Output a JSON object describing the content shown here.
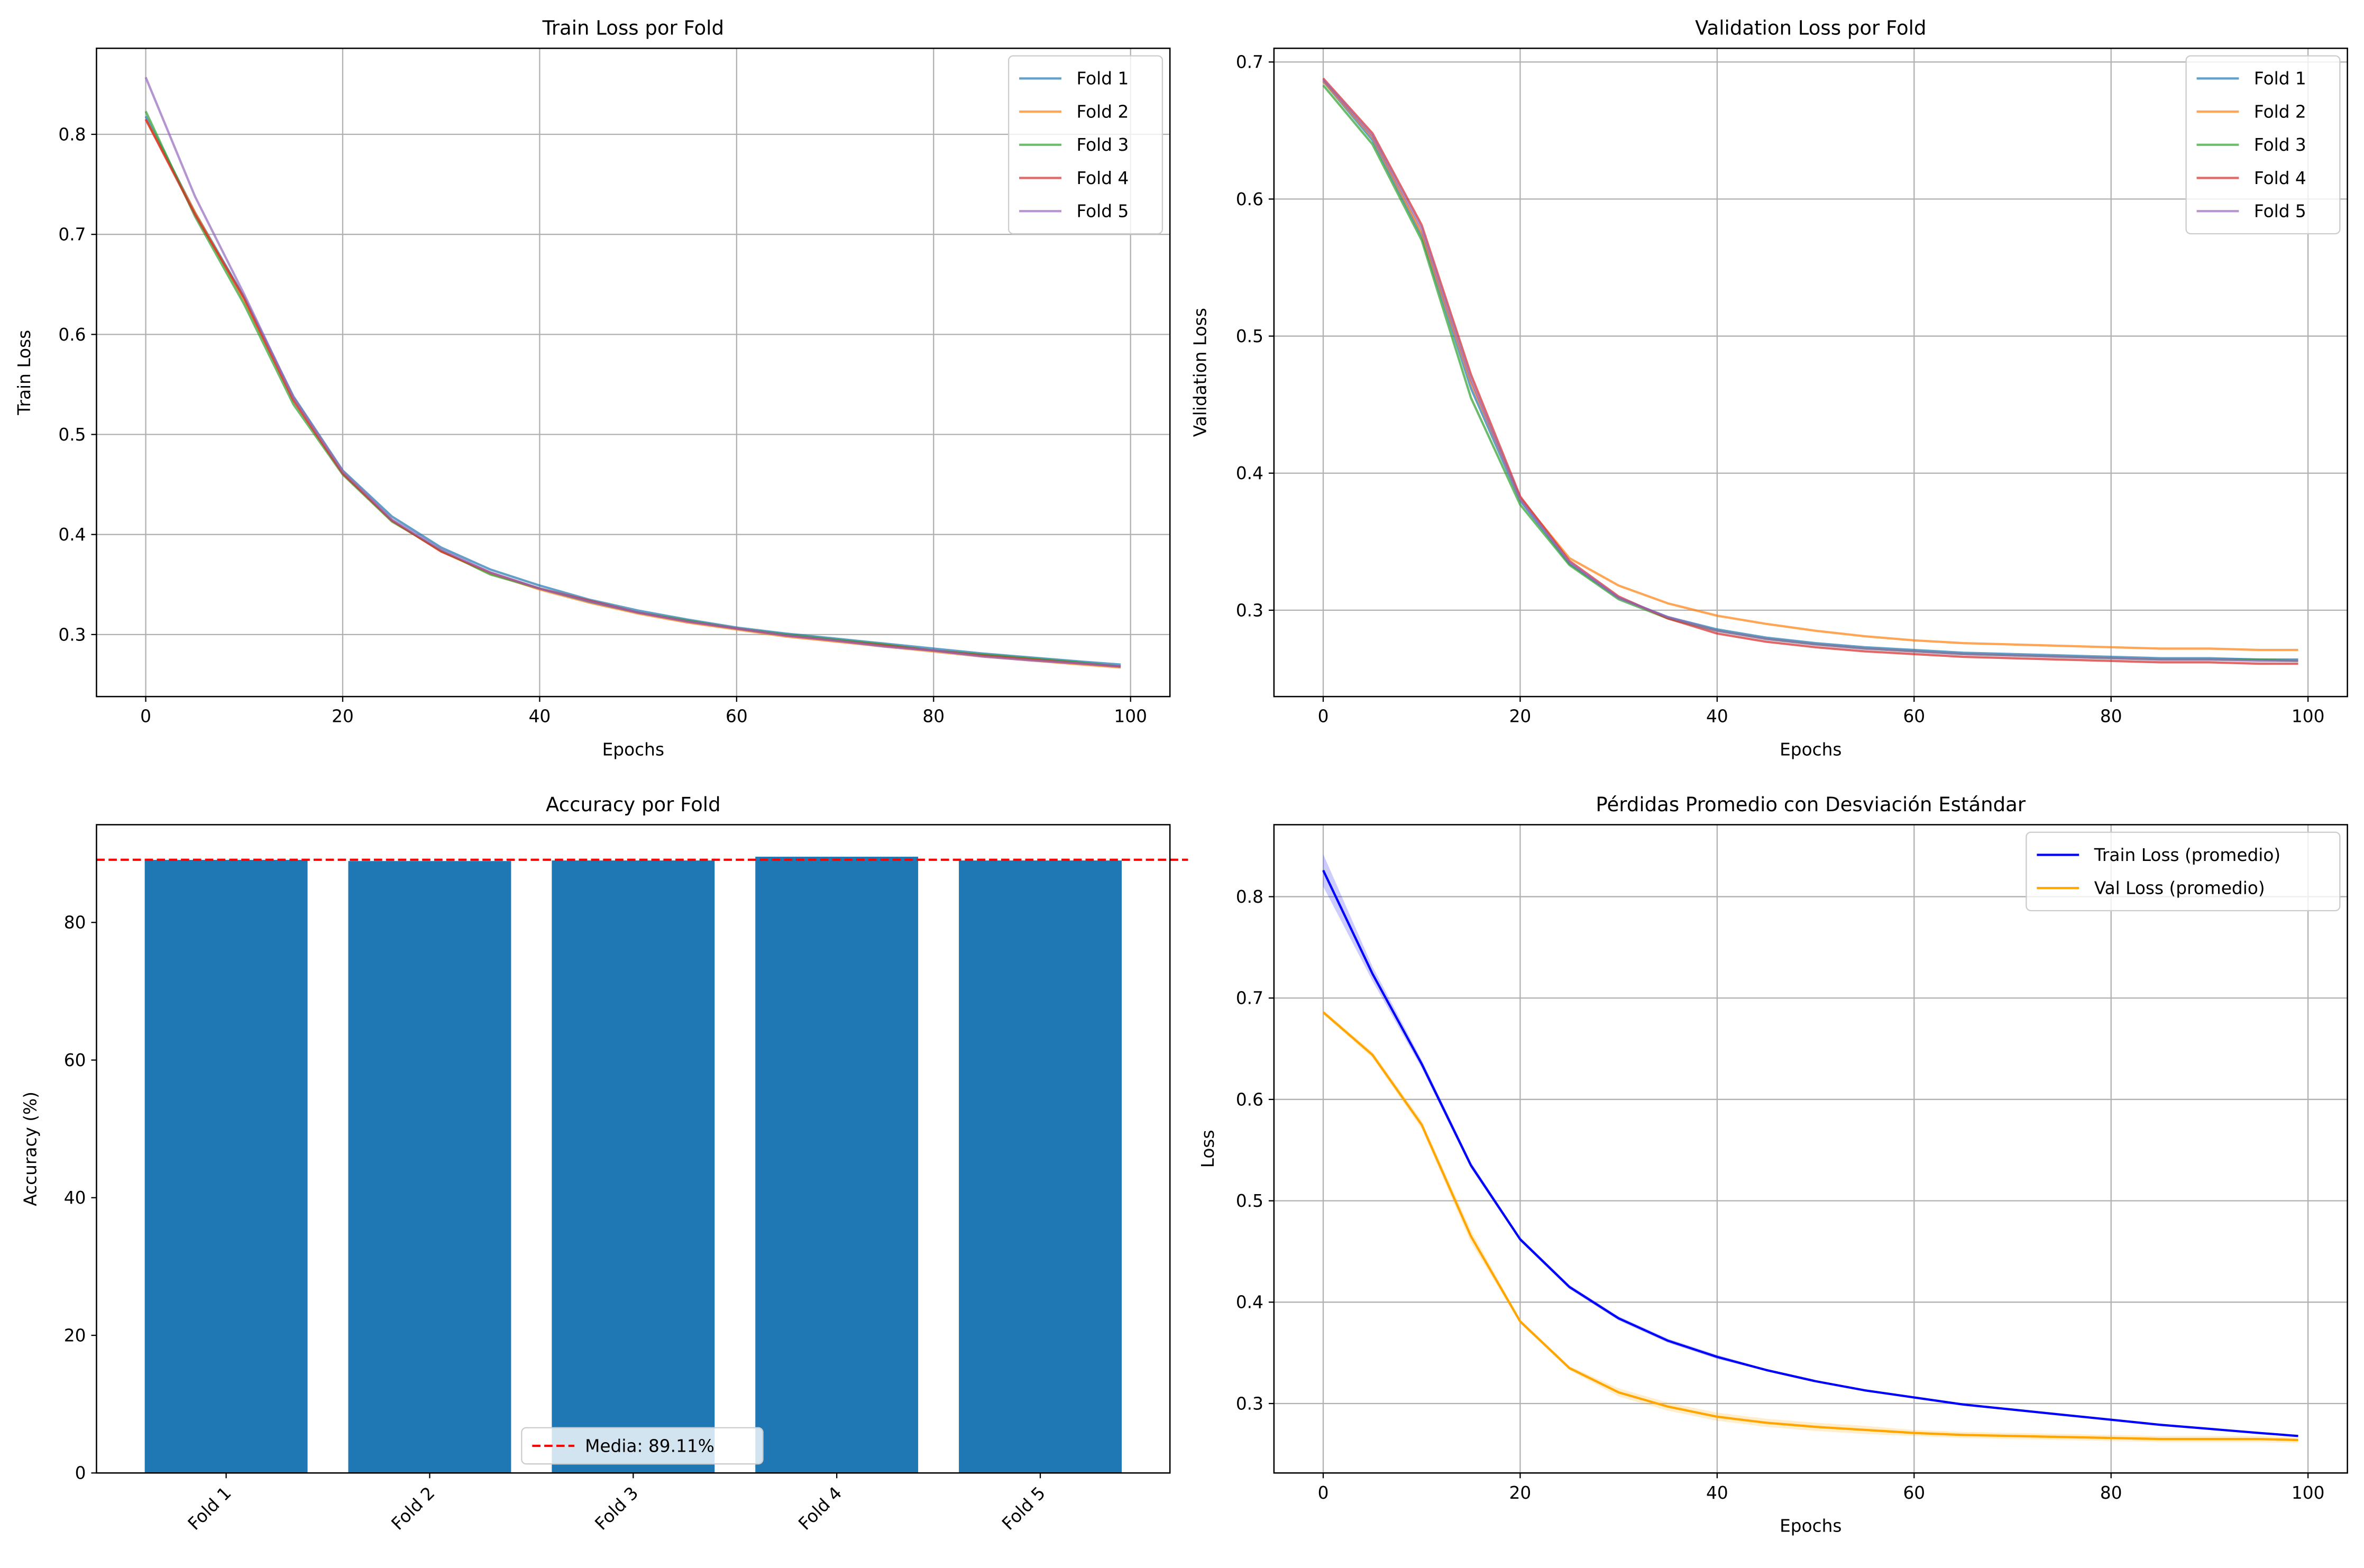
{
  "chart_data": [
    {
      "type": "line",
      "title": "Train Loss por Fold",
      "xlabel": "Epochs",
      "ylabel": "Train Loss",
      "xlim": [
        -5,
        104
      ],
      "ylim": [
        0.238,
        0.886
      ],
      "xticks": [
        0,
        20,
        40,
        60,
        80,
        100
      ],
      "yticks": [
        0.3,
        0.4,
        0.5,
        0.6,
        0.7,
        0.8
      ],
      "grid": true,
      "legend_position": "top-right",
      "x": [
        0,
        5,
        10,
        15,
        20,
        25,
        30,
        35,
        40,
        45,
        50,
        55,
        60,
        65,
        70,
        75,
        80,
        85,
        90,
        95,
        99
      ],
      "series": [
        {
          "name": "Fold 1",
          "color": "#1f77b4",
          "values": [
            0.818,
            0.722,
            0.637,
            0.538,
            0.464,
            0.418,
            0.387,
            0.365,
            0.349,
            0.335,
            0.324,
            0.315,
            0.307,
            0.301,
            0.296,
            0.291,
            0.286,
            0.281,
            0.277,
            0.273,
            0.27
          ]
        },
        {
          "name": "Fold 2",
          "color": "#ff7f0e",
          "values": [
            0.815,
            0.722,
            0.634,
            0.535,
            0.462,
            0.414,
            0.383,
            0.361,
            0.345,
            0.332,
            0.321,
            0.312,
            0.305,
            0.298,
            0.293,
            0.288,
            0.283,
            0.278,
            0.274,
            0.27,
            0.267
          ]
        },
        {
          "name": "Fold 3",
          "color": "#2ca02c",
          "values": [
            0.823,
            0.718,
            0.63,
            0.53,
            0.46,
            0.413,
            0.384,
            0.36,
            0.346,
            0.333,
            0.322,
            0.314,
            0.306,
            0.3,
            0.295,
            0.29,
            0.284,
            0.28,
            0.276,
            0.272,
            0.268
          ]
        },
        {
          "name": "Fold 4",
          "color": "#d62728",
          "values": [
            0.815,
            0.72,
            0.636,
            0.534,
            0.461,
            0.414,
            0.383,
            0.362,
            0.346,
            0.334,
            0.322,
            0.313,
            0.306,
            0.299,
            0.294,
            0.289,
            0.284,
            0.279,
            0.275,
            0.271,
            0.268
          ]
        },
        {
          "name": "Fold 5",
          "color": "#9467bd",
          "values": [
            0.857,
            0.738,
            0.64,
            0.537,
            0.463,
            0.415,
            0.385,
            0.362,
            0.346,
            0.333,
            0.322,
            0.313,
            0.306,
            0.299,
            0.294,
            0.288,
            0.284,
            0.278,
            0.274,
            0.271,
            0.268
          ]
        }
      ]
    },
    {
      "type": "line",
      "title": "Validation Loss por Fold",
      "xlabel": "Epochs",
      "ylabel": "Validation Loss",
      "xlim": [
        -5,
        104
      ],
      "ylim": [
        0.237,
        0.71
      ],
      "xticks": [
        0,
        20,
        40,
        60,
        80,
        100
      ],
      "yticks": [
        0.3,
        0.4,
        0.5,
        0.6,
        0.7
      ],
      "grid": true,
      "legend_position": "top-right",
      "x": [
        0,
        5,
        10,
        15,
        20,
        25,
        30,
        35,
        40,
        45,
        50,
        55,
        60,
        65,
        70,
        75,
        80,
        85,
        90,
        95,
        99
      ],
      "series": [
        {
          "name": "Fold 1",
          "color": "#1f77b4",
          "values": [
            0.686,
            0.643,
            0.573,
            0.462,
            0.38,
            0.334,
            0.309,
            0.295,
            0.286,
            0.28,
            0.276,
            0.273,
            0.271,
            0.269,
            0.268,
            0.267,
            0.266,
            0.265,
            0.265,
            0.264,
            0.264
          ]
        },
        {
          "name": "Fold 2",
          "color": "#ff7f0e",
          "values": [
            0.686,
            0.645,
            0.575,
            0.466,
            0.382,
            0.338,
            0.318,
            0.305,
            0.296,
            0.29,
            0.285,
            0.281,
            0.278,
            0.276,
            0.275,
            0.274,
            0.273,
            0.272,
            0.272,
            0.271,
            0.271
          ]
        },
        {
          "name": "Fold 3",
          "color": "#2ca02c",
          "values": [
            0.683,
            0.64,
            0.57,
            0.455,
            0.377,
            0.333,
            0.308,
            0.294,
            0.285,
            0.279,
            0.275,
            0.272,
            0.27,
            0.268,
            0.267,
            0.266,
            0.265,
            0.264,
            0.264,
            0.264,
            0.263
          ]
        },
        {
          "name": "Fold 4",
          "color": "#d62728",
          "values": [
            0.688,
            0.648,
            0.581,
            0.472,
            0.383,
            0.336,
            0.31,
            0.294,
            0.283,
            0.277,
            0.273,
            0.27,
            0.268,
            0.266,
            0.265,
            0.264,
            0.263,
            0.262,
            0.262,
            0.261,
            0.261
          ]
        },
        {
          "name": "Fold 5",
          "color": "#9467bd",
          "values": [
            0.687,
            0.646,
            0.578,
            0.468,
            0.381,
            0.335,
            0.309,
            0.295,
            0.285,
            0.279,
            0.275,
            0.272,
            0.27,
            0.268,
            0.267,
            0.266,
            0.265,
            0.264,
            0.264,
            0.263,
            0.263
          ]
        }
      ]
    },
    {
      "type": "bar",
      "title": "Accuracy por Fold",
      "xlabel": "",
      "ylabel": "Accuracy (%)",
      "ylim": [
        0,
        94.2
      ],
      "yticks": [
        0,
        20,
        40,
        60,
        80
      ],
      "grid": false,
      "categories": [
        "Fold 1",
        "Fold 2",
        "Fold 3",
        "Fold 4",
        "Fold 5"
      ],
      "values": [
        89.08,
        88.92,
        89.0,
        89.55,
        89.0
      ],
      "color": "#1f77b4",
      "mean_line": {
        "value": 89.11,
        "label": "Media: 89.11%",
        "color": "#ff0000"
      },
      "legend_position": "lower-center"
    },
    {
      "type": "line",
      "title": "Pérdidas Promedio con Desviación Estándar",
      "xlabel": "Epochs",
      "ylabel": "Loss",
      "xlim": [
        -5,
        104
      ],
      "ylim": [
        0.2315,
        0.871
      ],
      "xticks": [
        0,
        20,
        40,
        60,
        80,
        100
      ],
      "yticks": [
        0.3,
        0.4,
        0.5,
        0.6,
        0.7,
        0.8
      ],
      "grid": true,
      "legend_position": "top-right",
      "x": [
        0,
        5,
        10,
        15,
        20,
        25,
        30,
        35,
        40,
        45,
        50,
        55,
        60,
        65,
        70,
        75,
        80,
        85,
        90,
        95,
        99
      ],
      "series": [
        {
          "name": "Train Loss (promedio)",
          "color": "#0000ff",
          "values": [
            0.826,
            0.724,
            0.635,
            0.535,
            0.462,
            0.415,
            0.384,
            0.362,
            0.346,
            0.333,
            0.322,
            0.313,
            0.306,
            0.299,
            0.294,
            0.289,
            0.284,
            0.279,
            0.275,
            0.271,
            0.268
          ],
          "std": [
            0.016,
            0.007,
            0.004,
            0.003,
            0.002,
            0.002,
            0.002,
            0.002,
            0.002,
            0.001,
            0.001,
            0.001,
            0.001,
            0.001,
            0.001,
            0.001,
            0.001,
            0.001,
            0.001,
            0.001,
            0.001
          ]
        },
        {
          "name": "Val Loss (promedio)",
          "color": "#ffa500",
          "values": [
            0.686,
            0.644,
            0.575,
            0.465,
            0.381,
            0.335,
            0.311,
            0.297,
            0.287,
            0.281,
            0.277,
            0.274,
            0.271,
            0.269,
            0.268,
            0.267,
            0.266,
            0.265,
            0.265,
            0.265,
            0.264
          ],
          "std": [
            0.002,
            0.003,
            0.004,
            0.006,
            0.002,
            0.002,
            0.004,
            0.004,
            0.004,
            0.004,
            0.004,
            0.004,
            0.003,
            0.003,
            0.003,
            0.003,
            0.003,
            0.003,
            0.003,
            0.003,
            0.003
          ]
        }
      ]
    }
  ]
}
